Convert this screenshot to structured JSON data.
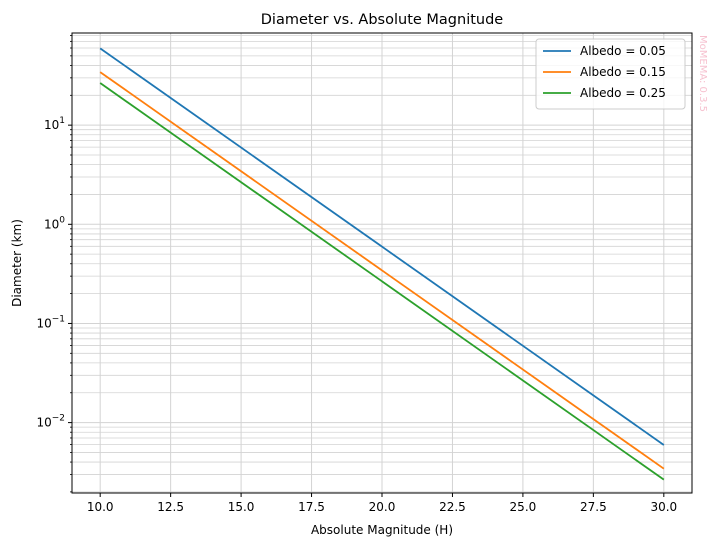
{
  "chart_data": {
    "type": "line",
    "title": "Diameter vs. Absolute Magnitude",
    "xlabel": "Absolute Magnitude (H)",
    "ylabel": "Diameter (km)",
    "xlim": [
      9.0,
      31.0
    ],
    "ylim": [
      0.00195,
      85
    ],
    "yscale": "log",
    "grid": true,
    "legend_position": "top-right",
    "xticks": [
      10.0,
      12.5,
      15.0,
      17.5,
      20.0,
      22.5,
      25.0,
      27.5,
      30.0
    ],
    "xtick_labels": [
      "10.0",
      "12.5",
      "15.0",
      "17.5",
      "20.0",
      "22.5",
      "25.0",
      "27.5",
      "30.0"
    ],
    "yticks": [
      {
        "value": 10,
        "base": "10",
        "exp": "1"
      },
      {
        "value": 1,
        "base": "10",
        "exp": "0"
      },
      {
        "value": 0.1,
        "base": "10",
        "exp": "−1"
      },
      {
        "value": 0.01,
        "base": "10",
        "exp": "−2"
      }
    ],
    "x": [
      10,
      30
    ],
    "series": [
      {
        "name": "Albedo = 0.05",
        "color": "#1f77b4",
        "values": [
          59.5,
          0.00595
        ]
      },
      {
        "name": "Albedo = 0.15",
        "color": "#ff7f0e",
        "values": [
          34.3,
          0.00343
        ]
      },
      {
        "name": "Albedo = 0.25",
        "color": "#2ca02c",
        "values": [
          26.6,
          0.00266
        ]
      }
    ]
  },
  "watermark": "MoMEMA: 0.3.5"
}
